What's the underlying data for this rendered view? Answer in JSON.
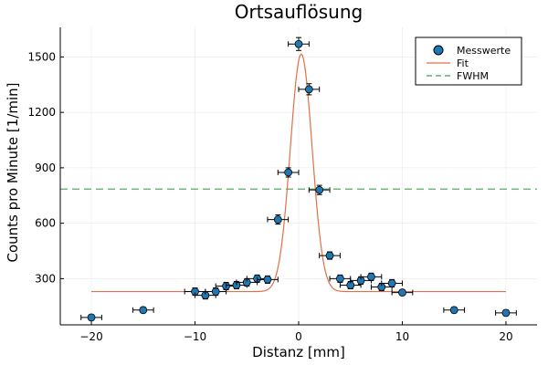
{
  "chart_data": {
    "type": "scatter",
    "title": "Ortsauflösung",
    "xlabel": "Distanz [mm]",
    "ylabel": "Counts pro Minute [1/min]",
    "xlim": [
      -23,
      23
    ],
    "ylim": [
      50,
      1660
    ],
    "xticks": [
      -20,
      -10,
      0,
      10,
      20
    ],
    "yticks": [
      300,
      600,
      900,
      1200,
      1500
    ],
    "grid": true,
    "legend_position": "top-right",
    "colors": {
      "points": "#1f77b4",
      "fit": "#e26f46",
      "fwhm": "#3da44d"
    },
    "series": [
      {
        "name": "Messwerte",
        "kind": "points_with_errorbars",
        "x_error": 1,
        "x": [
          -20,
          -15,
          -10,
          -9,
          -8,
          -7,
          -6,
          -5,
          -4,
          -3,
          -2,
          -1,
          0,
          1,
          2,
          3,
          4,
          5,
          6,
          7,
          8,
          9,
          10,
          15,
          20
        ],
        "y": [
          90,
          130,
          230,
          210,
          230,
          260,
          265,
          280,
          300,
          295,
          620,
          875,
          1570,
          1325,
          780,
          425,
          300,
          265,
          290,
          310,
          255,
          275,
          225,
          130,
          115
        ],
        "y_error": [
          15,
          15,
          20,
          20,
          20,
          20,
          20,
          20,
          20,
          20,
          25,
          25,
          35,
          30,
          25,
          20,
          20,
          20,
          20,
          20,
          20,
          20,
          15,
          15,
          15
        ]
      },
      {
        "name": "Fit",
        "kind": "gaussian_line",
        "baseline": 230,
        "amplitude": 1285,
        "center": 0.25,
        "sigma": 1.05,
        "x_range": [
          -20,
          20
        ]
      },
      {
        "name": "FWHM",
        "kind": "horizontal_dashed_line",
        "y": 785,
        "x_range": [
          -23,
          23
        ]
      }
    ]
  }
}
